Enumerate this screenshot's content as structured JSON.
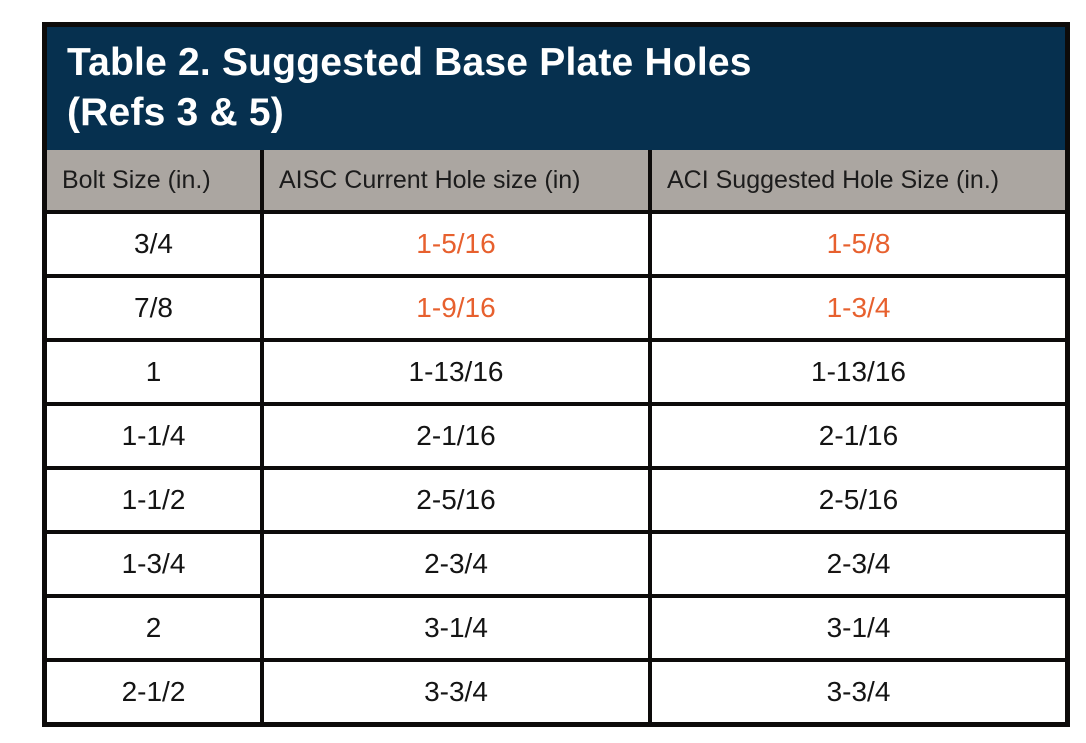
{
  "page": {
    "background": "#FFFFFF"
  },
  "chart_data": {
    "type": "table",
    "title": "Table 2. Suggested Base Plate Holes",
    "subtitle": "(Refs 3 & 5)",
    "columns": [
      "Bolt Size (in.)",
      "AISC Current Hole size (in)",
      "ACI Suggested Hole Size (in.)"
    ],
    "rows": [
      [
        "3/4",
        "1-5/16",
        "1-5/8"
      ],
      [
        "7/8",
        "1-9/16",
        "1-3/4"
      ],
      [
        "1",
        "1-13/16",
        "1-13/16"
      ],
      [
        "1-1/4",
        "2-1/16",
        "2-1/16"
      ],
      [
        "1-1/2",
        "2-5/16",
        "2-5/16"
      ],
      [
        "1-3/4",
        "2-3/4",
        "2-3/4"
      ],
      [
        "2",
        "3-1/4",
        "3-1/4"
      ],
      [
        "2-1/2",
        "3-3/4",
        "3-3/4"
      ]
    ],
    "highlighted_rows": [
      0,
      1
    ],
    "highlighted_columns": [
      1,
      2
    ],
    "colors": {
      "title_bg": "#06304F",
      "title_text": "#FFFFFF",
      "header_bg": "#ABA6A1",
      "header_text": "#1C1C1C",
      "body_text": "#141414",
      "highlight_text": "#E7602E",
      "border": "#0D0B0A",
      "page_bg": "#FFFFFF"
    }
  }
}
